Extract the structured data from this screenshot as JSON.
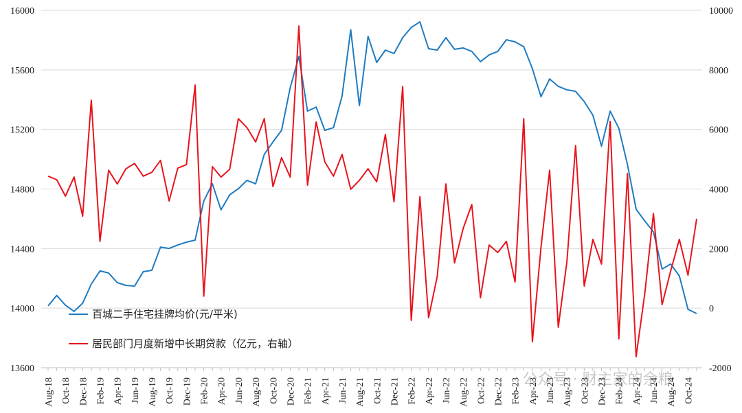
{
  "chart_data": {
    "type": "line",
    "categories": [
      "Aug-18",
      null,
      "Oct-18",
      null,
      "Dec-18",
      null,
      "Feb-19",
      null,
      "Apr-19",
      null,
      "Jun-19",
      null,
      "Aug-19",
      null,
      "Oct-19",
      null,
      "Dec-19",
      null,
      "Feb-20",
      null,
      "Apr-20",
      null,
      "Jun-20",
      null,
      "Aug-20",
      null,
      "Oct-20",
      null,
      "Dec-20",
      null,
      "Feb-21",
      null,
      "Apr-21",
      null,
      "Jun-21",
      null,
      "Aug-21",
      null,
      "Oct-21",
      null,
      "Dec-21",
      null,
      "Feb-22",
      null,
      "Apr-22",
      null,
      "Jun-22",
      null,
      "Aug-22",
      null,
      "Oct-22",
      null,
      "Dec-22",
      null,
      "Feb-23",
      null,
      "Apr-23",
      null,
      "Jun-23",
      null,
      "Aug-23",
      null,
      "Oct-23",
      null,
      "Dec-23",
      null,
      "Feb-24",
      null,
      "Apr-24",
      null,
      "Jun-24",
      null,
      "Aug-24",
      null,
      "Oct-24",
      null
    ],
    "series": [
      {
        "name": "百城二手住宅挂牌均价(元/平米)",
        "color": "#1f7bc1",
        "values": [
          14015,
          14085,
          14020,
          13978,
          14033,
          14162,
          14250,
          14236,
          14171,
          14153,
          14148,
          14245,
          14254,
          14410,
          14401,
          14424,
          14443,
          14457,
          14720,
          14835,
          14660,
          14761,
          14802,
          14858,
          14835,
          15033,
          15116,
          15194,
          15480,
          15690,
          15323,
          15350,
          15194,
          15212,
          15424,
          15870,
          15360,
          15825,
          15650,
          15733,
          15710,
          15816,
          15885,
          15922,
          15742,
          15733,
          15816,
          15738,
          15747,
          15724,
          15655,
          15700,
          15724,
          15802,
          15788,
          15756,
          15608,
          15420,
          15539,
          15489,
          15466,
          15456,
          15387,
          15295,
          15088,
          15323,
          15208,
          14964,
          14664,
          14586,
          14512,
          14263,
          14296,
          14217,
          13992,
          13964
        ]
      },
      {
        "name": "居民部门月度新增中长期贷款（亿元，右轴）",
        "color": "#e8141c",
        "axis": "y2",
        "values": [
          4430,
          4310,
          3760,
          4400,
          3090,
          6980,
          2240,
          4630,
          4170,
          4680,
          4860,
          4430,
          4560,
          4960,
          3600,
          4700,
          4820,
          7490,
          400,
          4750,
          4400,
          4660,
          6360,
          6060,
          5580,
          6360,
          4080,
          5050,
          4400,
          9470,
          4130,
          6250,
          4910,
          4430,
          5160,
          3990,
          4290,
          4680,
          4240,
          5830,
          3570,
          7440,
          -410,
          3740,
          -320,
          1060,
          4170,
          1520,
          2680,
          3480,
          350,
          2120,
          1870,
          2240,
          880,
          6360,
          -1130,
          2030,
          4630,
          -640,
          1570,
          5460,
          740,
          2310,
          1480,
          6270,
          -1030,
          4520,
          -1630,
          490,
          3180,
          120,
          1250,
          2310,
          1110,
          3000
        ]
      }
    ],
    "ylim": [
      13600,
      16000
    ],
    "yticks": [
      13600,
      14000,
      14400,
      14800,
      15200,
      15600,
      16000
    ],
    "y2lim": [
      -2000,
      10000
    ],
    "y2ticks": [
      -2000,
      0,
      2000,
      4000,
      6000,
      8000,
      10000
    ],
    "grid": true,
    "watermark": "公众号 · 财主家的余粮"
  }
}
